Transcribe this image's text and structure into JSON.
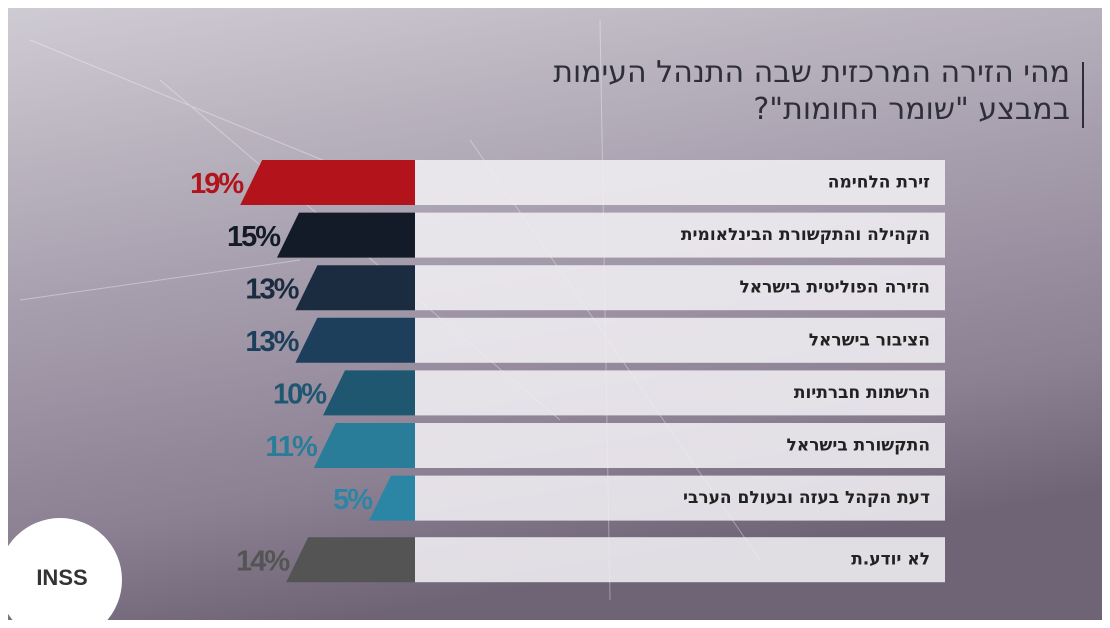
{
  "chart_data": {
    "type": "bar",
    "orientation": "horizontal",
    "title": [
      "מהי הזירה המרכזית שבה התנהל העימות",
      "במבצע \"שומר החומות\"?"
    ],
    "categories": [
      "זירת הלחימה",
      "הקהילה והתקשורת הבינלאומית",
      "הזירה הפוליטית בישראל",
      "הציבור בישראל",
      "הרשתות חברתיות",
      "התקשורת בישראל",
      "דעת הקהל בעזה ובעולם הערבי",
      "לא יודע.ת"
    ],
    "values": [
      19,
      15,
      13,
      13,
      10,
      11,
      5,
      14
    ],
    "value_labels": [
      "19%",
      "15%",
      "13%",
      "13%",
      "10%",
      "11%",
      "5%",
      "14%"
    ],
    "colors": [
      "#b3141c",
      "#121b27",
      "#1b2c40",
      "#1d3f5c",
      "#1f5771",
      "#2a7d99",
      "#2b86a6",
      "#545454"
    ],
    "logo": "INSS"
  }
}
